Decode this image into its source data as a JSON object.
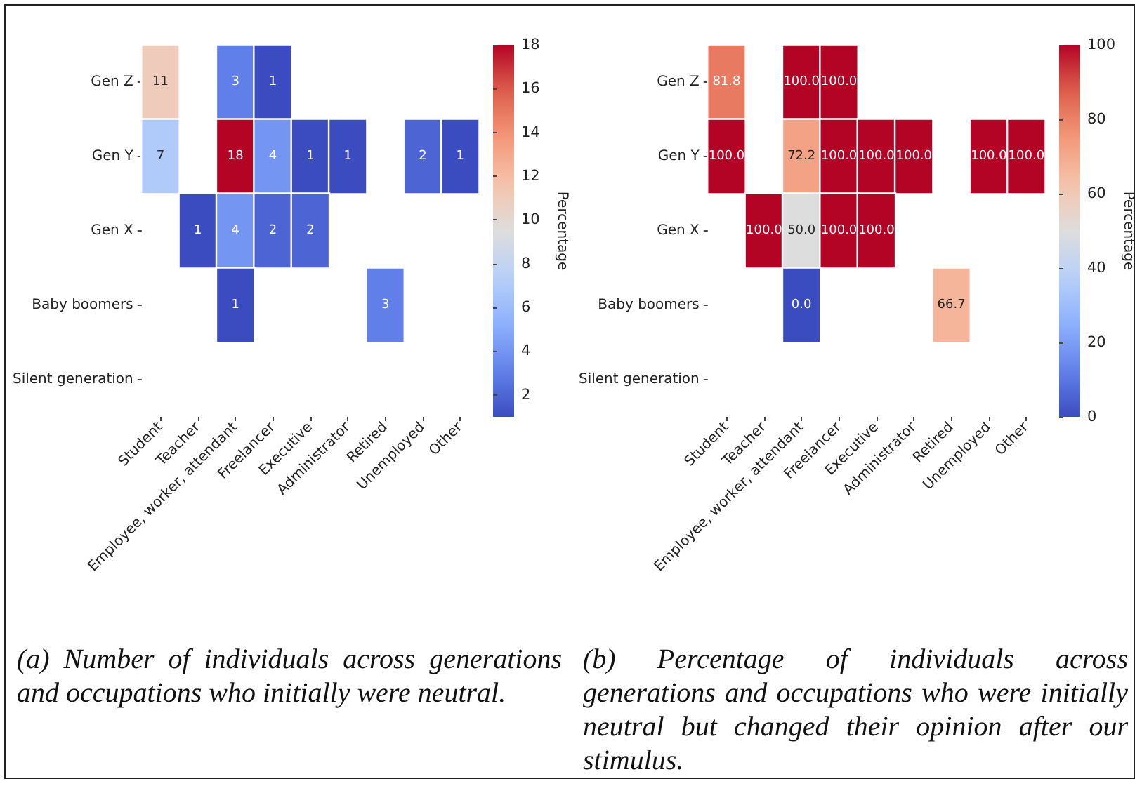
{
  "chart_data": [
    {
      "type": "heatmap",
      "clabel": "Percentage",
      "categories": [
        "Student",
        "Teacher",
        "Employee, worker, attendant",
        "Freelancer",
        "Executive",
        "Administrator",
        "Retired",
        "Unemployed",
        "Other"
      ],
      "y_categories": [
        "Gen Z",
        "Gen Y",
        "Gen X",
        "Baby boomers",
        "Silent generation"
      ],
      "cells": [
        [
          11,
          null,
          3,
          1,
          null,
          null,
          null,
          null,
          null
        ],
        [
          7,
          null,
          18,
          4,
          1,
          1,
          null,
          2,
          1
        ],
        [
          null,
          1,
          4,
          2,
          2,
          null,
          null,
          null,
          null
        ],
        [
          null,
          null,
          1,
          null,
          null,
          null,
          3,
          null,
          null
        ],
        [
          null,
          null,
          null,
          null,
          null,
          null,
          null,
          null,
          null
        ]
      ],
      "cell_labels": [
        [
          "11",
          null,
          "3",
          "1",
          null,
          null,
          null,
          null,
          null
        ],
        [
          "7",
          null,
          "18",
          "4",
          "1",
          "1",
          null,
          "2",
          "1"
        ],
        [
          null,
          "1",
          "4",
          "2",
          "2",
          null,
          null,
          null,
          null
        ],
        [
          null,
          null,
          "1",
          null,
          null,
          null,
          "3",
          null,
          null
        ],
        [
          null,
          null,
          null,
          null,
          null,
          null,
          null,
          null,
          null
        ]
      ],
      "clim": [
        1,
        18
      ],
      "cticks": [
        2,
        4,
        6,
        8,
        10,
        12,
        14,
        16,
        18
      ],
      "annotations": [
        "(a) Number of individuals across generations and occupations who initially were neutral."
      ]
    },
    {
      "type": "heatmap",
      "clabel": "Percentage",
      "categories": [
        "Student",
        "Teacher",
        "Employee, worker, attendant",
        "Freelancer",
        "Executive",
        "Administrator",
        "Retired",
        "Unemployed",
        "Other"
      ],
      "y_categories": [
        "Gen Z",
        "Gen Y",
        "Gen X",
        "Baby boomers",
        "Silent generation"
      ],
      "cells": [
        [
          81.8,
          null,
          100,
          100,
          null,
          null,
          null,
          null,
          null
        ],
        [
          100,
          null,
          72.2,
          100,
          100,
          100,
          null,
          100,
          100
        ],
        [
          null,
          100,
          50,
          100,
          100,
          null,
          null,
          null,
          null
        ],
        [
          null,
          null,
          0,
          null,
          null,
          null,
          66.7,
          null,
          null
        ],
        [
          null,
          null,
          null,
          null,
          null,
          null,
          null,
          null,
          null
        ]
      ],
      "cell_labels": [
        [
          "81.8",
          null,
          "100.0",
          "100.0",
          null,
          null,
          null,
          null,
          null
        ],
        [
          "100.0",
          null,
          "72.2",
          "100.0",
          "100.0",
          "100.0",
          null,
          "100.0",
          "100.0"
        ],
        [
          null,
          "100.0",
          "50.0",
          "100.0",
          "100.0",
          null,
          null,
          null,
          null
        ],
        [
          null,
          null,
          "0.0",
          null,
          null,
          null,
          "66.7",
          null,
          null
        ],
        [
          null,
          null,
          null,
          null,
          null,
          null,
          null,
          null,
          null
        ]
      ],
      "clim": [
        0,
        100
      ],
      "cticks": [
        0,
        20,
        40,
        60,
        80,
        100
      ],
      "annotations": [
        "(b) Percentage of individuals across generations and occupations who were initially neutral but changed their opinion after our stimulus."
      ]
    }
  ]
}
